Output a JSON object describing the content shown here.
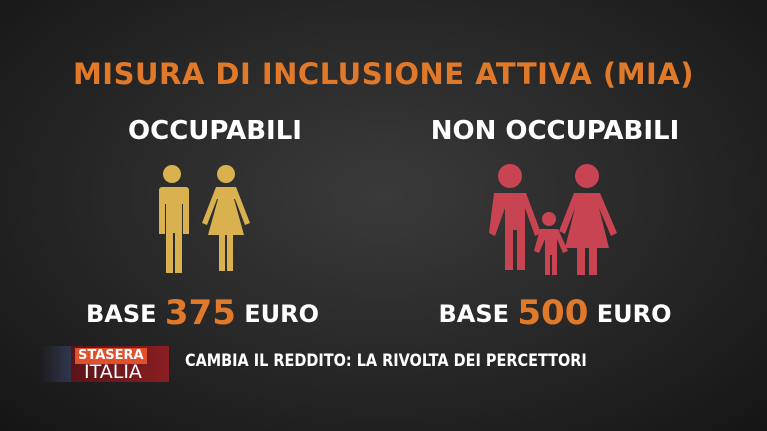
{
  "colors": {
    "accent": "#e07a2a",
    "yellow": "#d9b24f",
    "red": "#c94452"
  },
  "title": "MISURA DI INCLUSIONE ATTIVA (MIA)",
  "left": {
    "heading": "OCCUPABILI",
    "icon": "man-woman-icon",
    "base_prefix": "BASE",
    "amount": "375",
    "base_suffix": "EURO"
  },
  "right": {
    "heading": "NON OCCUPABILI",
    "icon": "family-icon",
    "base_prefix": "BASE",
    "amount": "500",
    "base_suffix": "EURO"
  },
  "banner": {
    "logo_top": "STASERA",
    "logo_bottom": "ITALIA",
    "ticker": "CAMBIA IL REDDITO: LA RIVOLTA DEI PERCETTORI"
  }
}
